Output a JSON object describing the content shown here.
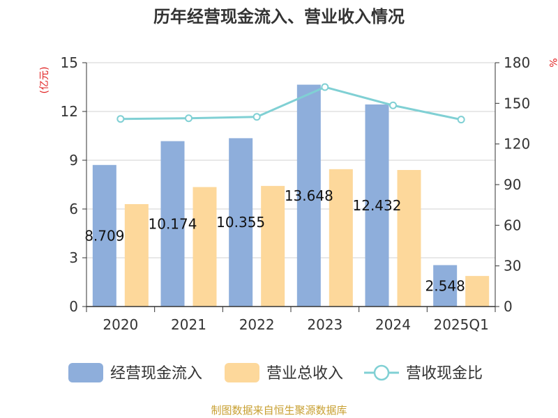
{
  "title": "历年经营现金流入、营业收入情况",
  "source": "制图数据来自恒生聚源数据库",
  "chart_data": {
    "type": "bar",
    "categories": [
      "2020",
      "2021",
      "2022",
      "2023",
      "2024",
      "2025Q1"
    ],
    "series": [
      {
        "name": "经营现金流入",
        "type": "bar",
        "axis": "left",
        "color": "#8eaedb",
        "values": [
          8.709,
          10.174,
          10.355,
          13.648,
          12.432,
          2.548
        ],
        "labels": [
          "8.709",
          "10.174",
          "10.355",
          "13.648",
          "12.432",
          "2.548"
        ]
      },
      {
        "name": "营业总收入",
        "type": "bar",
        "axis": "left",
        "color": "#fdd89b",
        "values": [
          6.3,
          7.35,
          7.42,
          8.45,
          8.4,
          1.88
        ]
      },
      {
        "name": "营收现金比",
        "type": "line",
        "axis": "right",
        "color": "#80d0d4",
        "values": [
          138.5,
          139.0,
          140.0,
          162.0,
          148.5,
          138.0
        ]
      }
    ],
    "y_left": {
      "unit": "(亿元)",
      "ylim": [
        0,
        15
      ],
      "ticks": [
        "0",
        "3",
        "6",
        "9",
        "12",
        "15"
      ]
    },
    "y_right": {
      "unit": "%",
      "ylim": [
        0,
        180
      ],
      "ticks": [
        "0",
        "30",
        "60",
        "90",
        "120",
        "150",
        "180"
      ]
    },
    "grid": true,
    "legend_position": "bottom"
  }
}
